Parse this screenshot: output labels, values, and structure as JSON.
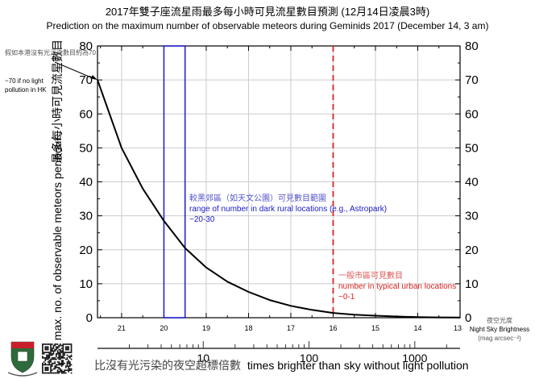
{
  "chart_data": {
    "type": "line",
    "title": "2017年雙子座流星雨最多每小時可見流星數目預測 (12月14日凌晨3時)",
    "subtitle": "Prediction on the maximum number of observable meteors during Geminids 2017 (December 14, 3 am)",
    "ylabel_zh": "最多每小時可見流星數目",
    "ylabel_en": "max. no. of observable meteors per hour",
    "ylim": [
      0,
      80
    ],
    "yticks": [
      0,
      10,
      20,
      30,
      40,
      50,
      60,
      70,
      80
    ],
    "xlim": [
      21.57,
      13
    ],
    "xticks": [
      21,
      20,
      19,
      18,
      17,
      16,
      15,
      14,
      13
    ],
    "xlabel_zh": "夜空光度",
    "xlabel_en": "Night Sky Brightness",
    "xlabel_unit": "(mag arcsec⁻²)",
    "x2_scale": "log",
    "x2_ticks": [
      10,
      100,
      1000
    ],
    "x2_label_zh": "比沒有光污染的夜空超標倍數",
    "x2_label_en": "times brighter than sky without light pollution",
    "grid": true,
    "series": [
      {
        "x": [
          21.57,
          21.0,
          20.5,
          20.0,
          19.5,
          19.0,
          18.5,
          18.0,
          17.5,
          17.0,
          16.5,
          16.0,
          15.5,
          15.0,
          14.5,
          14.0,
          13.5,
          13.0
        ],
        "y": [
          70,
          50,
          38,
          28.5,
          20.5,
          14.8,
          10.6,
          7.6,
          5.2,
          3.5,
          2.3,
          1.4,
          0.9,
          0.6,
          0.35,
          0.2,
          0.1,
          0.05
        ],
        "color": "#000000"
      }
    ],
    "annotations": {
      "no_pollution": {
        "zh": "假如本港沒有光污染數目約為70",
        "en1": "~70 if no light",
        "en2": "pollution in HK",
        "x": 21.57,
        "y": 70
      },
      "dark_rural": {
        "zh": "較黑郊區（如天文公園）可見數目範圍",
        "en": "range of number in dark rural locations (e.g., Astropark)",
        "range": "~20-30",
        "x_from": 20.0,
        "x_to": 19.5,
        "color": "#1a1acc"
      },
      "urban": {
        "zh": "一般市區可見數目",
        "en": "number in typical urban locations",
        "range": "~0-1",
        "x": 16.0,
        "color": "#dd2222"
      }
    }
  }
}
